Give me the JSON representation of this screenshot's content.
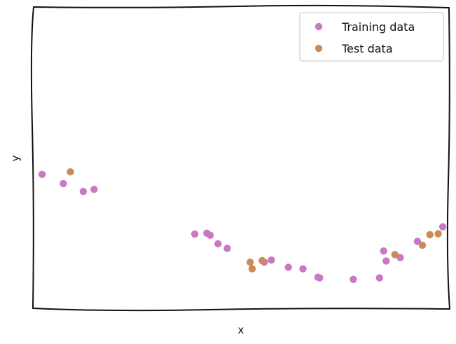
{
  "chart_data": {
    "type": "scatter",
    "title": "",
    "xlabel": "x",
    "ylabel": "y",
    "xlim": [
      0,
      100
    ],
    "ylim": [
      0,
      100
    ],
    "xticks": [],
    "yticks": [],
    "grid": false,
    "legend_position": "top-right",
    "series": [
      {
        "name": "Training data",
        "color": "#c978c4",
        "points": [
          [
            2.2,
            44.6
          ],
          [
            7.3,
            41.5
          ],
          [
            12.1,
            38.9
          ],
          [
            14.7,
            39.6
          ],
          [
            38.9,
            24.8
          ],
          [
            41.8,
            25.1
          ],
          [
            42.6,
            24.4
          ],
          [
            44.5,
            21.6
          ],
          [
            46.7,
            20.1
          ],
          [
            55.6,
            15.5
          ],
          [
            57.3,
            16.2
          ],
          [
            61.4,
            13.8
          ],
          [
            64.9,
            13.3
          ],
          [
            68.5,
            10.5
          ],
          [
            68.9,
            10.3
          ],
          [
            77.0,
            9.8
          ],
          [
            83.3,
            10.3
          ],
          [
            84.3,
            19.2
          ],
          [
            84.9,
            15.9
          ],
          [
            88.3,
            17.0
          ],
          [
            92.4,
            22.4
          ],
          [
            98.5,
            27.2
          ]
        ]
      },
      {
        "name": "Test data",
        "color": "#c98b58",
        "points": [
          [
            9.0,
            45.4
          ],
          [
            52.2,
            15.5
          ],
          [
            52.7,
            13.3
          ],
          [
            55.1,
            16.0
          ],
          [
            87.0,
            18.0
          ],
          [
            93.6,
            21.1
          ],
          [
            95.4,
            24.6
          ],
          [
            97.4,
            24.9
          ]
        ]
      }
    ]
  }
}
